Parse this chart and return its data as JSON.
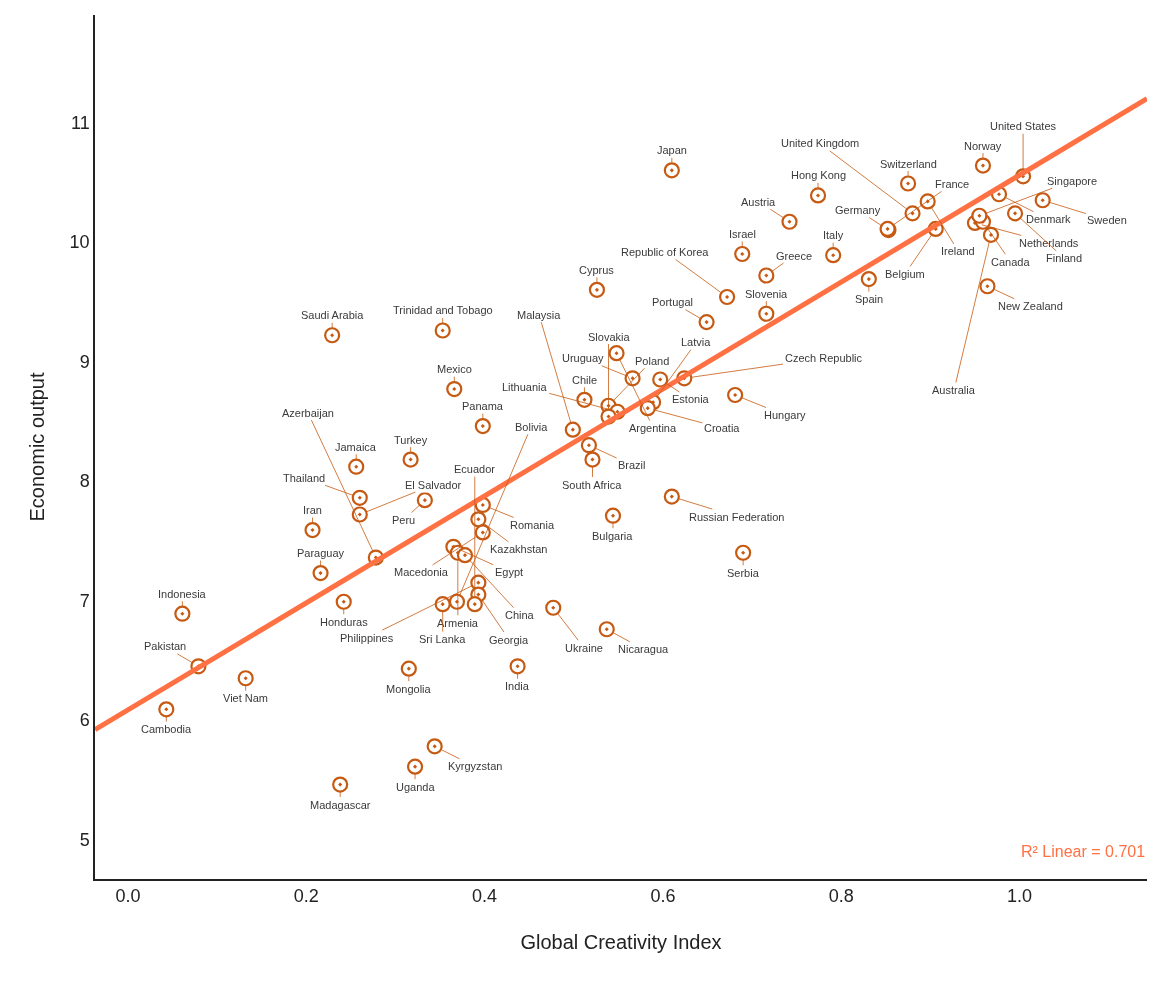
{
  "chart_data": {
    "type": "scatter",
    "xlabel": "Global Creativity Index",
    "ylabel": "Economic output",
    "xlim": [
      -0.037,
      1.143
    ],
    "ylim": [
      4.67,
      11.9
    ],
    "xticks": [
      {
        "value": 0,
        "label": "0.0"
      },
      {
        "value": 0.2,
        "label": "0.2"
      },
      {
        "value": 0.4,
        "label": "0.4"
      },
      {
        "value": 0.6,
        "label": "0.6"
      },
      {
        "value": 0.8,
        "label": "0.8"
      },
      {
        "value": 1,
        "label": "1.0"
      }
    ],
    "yticks": [
      5,
      6,
      7,
      8,
      9,
      10,
      11
    ],
    "series": [
      {
        "color": "#c65a12",
        "marker": "circle",
        "x": [
          0.061,
          0.043,
          0.079,
          0.132,
          0.242,
          0.216,
          0.207,
          0.26,
          0.26,
          0.256,
          0.278,
          0.317,
          0.333,
          0.366,
          0.353,
          0.229,
          0.398,
          0.398,
          0.393,
          0.398,
          0.365,
          0.37,
          0.378,
          0.393,
          0.393,
          0.389,
          0.369,
          0.353,
          0.315,
          0.238,
          0.322,
          0.344,
          0.437,
          0.477,
          0.537,
          0.544,
          0.61,
          0.69,
          0.512,
          0.539,
          0.549,
          0.539,
          0.499,
          0.517,
          0.521,
          0.526,
          0.548,
          0.566,
          0.597,
          0.624,
          0.589,
          0.583,
          0.61,
          0.649,
          0.689,
          0.681,
          0.672,
          0.716,
          0.716,
          0.742,
          0.774,
          0.791,
          0.831,
          0.853,
          0.852,
          0.875,
          0.88,
          0.897,
          0.906,
          0.95,
          0.959,
          0.955,
          0.968,
          0.964,
          0.959,
          0.977,
          1.004,
          0.995,
          1.026
        ],
        "values": [
          6.89,
          6.09,
          6.45,
          6.35,
          6.99,
          7.23,
          7.59,
          7.72,
          7.86,
          8.12,
          7.36,
          8.18,
          7.84,
          8.77,
          9.26,
          9.22,
          8.46,
          7.8,
          7.68,
          7.57,
          7.45,
          7.4,
          7.38,
          7.15,
          7.05,
          6.97,
          6.99,
          6.97,
          6.43,
          5.46,
          5.61,
          5.78,
          6.45,
          6.94,
          6.76,
          7.71,
          7.87,
          7.4,
          8.68,
          8.63,
          8.58,
          8.54,
          8.43,
          8.3,
          8.18,
          9.6,
          9.07,
          8.86,
          8.85,
          8.86,
          8.66,
          8.61,
          10.6,
          9.33,
          9.9,
          8.72,
          9.54,
          9.72,
          9.4,
          10.17,
          10.39,
          9.89,
          9.69,
          10.1,
          10.11,
          10.49,
          10.24,
          10.34,
          10.11,
          10.16,
          10.17,
          10.22,
          10.06,
          9.63,
          10.64,
          10.4,
          10.55,
          10.24,
          10.35
        ]
      },
      {
        "type": "line",
        "color": "#ff7043",
        "x": [
          -0.037,
          1.143
        ],
        "values": [
          5.92,
          11.2
        ]
      }
    ],
    "annotations": [
      {
        "text": "Indonesia",
        "x": 0.061,
        "y": 6.89
      },
      {
        "text": "Cambodia",
        "x": 0.043,
        "y": 6.09
      },
      {
        "text": "Pakistan",
        "x": 0.079,
        "y": 6.45
      },
      {
        "text": "Viet Nam",
        "x": 0.132,
        "y": 6.35
      },
      {
        "text": "Honduras",
        "x": 0.242,
        "y": 6.99
      },
      {
        "text": "Paraguay",
        "x": 0.216,
        "y": 7.23
      },
      {
        "text": "Iran",
        "x": 0.207,
        "y": 7.59
      },
      {
        "text": "El Salvador",
        "x": 0.26,
        "y": 7.72
      },
      {
        "text": "Thailand",
        "x": 0.26,
        "y": 7.86
      },
      {
        "text": "Jamaica",
        "x": 0.256,
        "y": 8.12
      },
      {
        "text": "Azerbaijan",
        "x": 0.278,
        "y": 7.36
      },
      {
        "text": "Turkey",
        "x": 0.317,
        "y": 8.18
      },
      {
        "text": "Peru",
        "x": 0.333,
        "y": 7.84
      },
      {
        "text": "Mexico",
        "x": 0.366,
        "y": 8.77
      },
      {
        "text": "Trinidad and Tobago",
        "x": 0.353,
        "y": 9.26
      },
      {
        "text": "Saudi Arabia",
        "x": 0.229,
        "y": 9.22
      },
      {
        "text": "Panama",
        "x": 0.398,
        "y": 8.46
      },
      {
        "text": "Romania",
        "x": 0.398,
        "y": 7.8
      },
      {
        "text": "Kazakhstan",
        "x": 0.393,
        "y": 7.68
      },
      {
        "text": "Macedonia",
        "x": 0.398,
        "y": 7.57
      },
      {
        "text": "Egypt",
        "x": 0.365,
        "y": 7.45
      },
      {
        "text": "Armenia",
        "x": 0.37,
        "y": 7.4
      },
      {
        "text": "China",
        "x": 0.378,
        "y": 7.38
      },
      {
        "text": "Philippines",
        "x": 0.393,
        "y": 7.15
      },
      {
        "text": "Georgia",
        "x": 0.393,
        "y": 7.05
      },
      {
        "text": "Ecuador",
        "x": 0.389,
        "y": 6.97
      },
      {
        "text": "Bolivia",
        "x": 0.369,
        "y": 6.99
      },
      {
        "text": "Sri Lanka",
        "x": 0.353,
        "y": 6.97
      },
      {
        "text": "Mongolia",
        "x": 0.315,
        "y": 6.43
      },
      {
        "text": "Madagascar",
        "x": 0.238,
        "y": 5.46
      },
      {
        "text": "Uganda",
        "x": 0.322,
        "y": 5.61
      },
      {
        "text": "Kyrgyzstan",
        "x": 0.344,
        "y": 5.78
      },
      {
        "text": "India",
        "x": 0.437,
        "y": 6.45
      },
      {
        "text": "Ukraine",
        "x": 0.477,
        "y": 6.94
      },
      {
        "text": "Nicaragua",
        "x": 0.537,
        "y": 6.76
      },
      {
        "text": "Bulgaria",
        "x": 0.544,
        "y": 7.71
      },
      {
        "text": "Russian Federation",
        "x": 0.61,
        "y": 7.87
      },
      {
        "text": "Serbia",
        "x": 0.69,
        "y": 7.4
      },
      {
        "text": "Chile",
        "x": 0.512,
        "y": 8.68
      },
      {
        "text": "Poland",
        "x": 0.539,
        "y": 8.63
      },
      {
        "text": "Lithuania",
        "x": 0.549,
        "y": 8.58
      },
      {
        "text": "Slovakia",
        "x": 0.539,
        "y": 8.54
      },
      {
        "text": "Malaysia",
        "x": 0.499,
        "y": 8.43
      },
      {
        "text": "Brazil",
        "x": 0.517,
        "y": 8.3
      },
      {
        "text": "South Africa",
        "x": 0.521,
        "y": 8.18
      },
      {
        "text": "Cyprus",
        "x": 0.526,
        "y": 9.6
      },
      {
        "text": "Argentina",
        "x": 0.548,
        "y": 9.07
      },
      {
        "text": "Uruguay",
        "x": 0.566,
        "y": 8.86
      },
      {
        "text": "Estonia",
        "x": 0.597,
        "y": 8.85
      },
      {
        "text": "Czech Republic",
        "x": 0.624,
        "y": 8.86
      },
      {
        "text": "Latvia",
        "x": 0.589,
        "y": 8.66
      },
      {
        "text": "Croatia",
        "x": 0.583,
        "y": 8.61
      },
      {
        "text": "Japan",
        "x": 0.61,
        "y": 10.6
      },
      {
        "text": "Portugal",
        "x": 0.649,
        "y": 9.33
      },
      {
        "text": "Israel",
        "x": 0.689,
        "y": 9.9
      },
      {
        "text": "Hungary",
        "x": 0.681,
        "y": 8.72
      },
      {
        "text": "Republic of Korea",
        "x": 0.672,
        "y": 9.54
      },
      {
        "text": "Greece",
        "x": 0.716,
        "y": 9.72
      },
      {
        "text": "Slovenia",
        "x": 0.716,
        "y": 9.4
      },
      {
        "text": "Austria",
        "x": 0.742,
        "y": 10.17
      },
      {
        "text": "Hong Kong",
        "x": 0.774,
        "y": 10.39
      },
      {
        "text": "Italy",
        "x": 0.791,
        "y": 9.89
      },
      {
        "text": "Spain",
        "x": 0.831,
        "y": 9.69
      },
      {
        "text": "Germany",
        "x": 0.853,
        "y": 10.1
      },
      {
        "text": "France",
        "x": 0.852,
        "y": 10.11
      },
      {
        "text": "Switzerland",
        "x": 0.875,
        "y": 10.49
      },
      {
        "text": "United Kingdom",
        "x": 0.88,
        "y": 10.24
      },
      {
        "text": "Ireland",
        "x": 0.897,
        "y": 10.34
      },
      {
        "text": "Belgium",
        "x": 0.906,
        "y": 10.11
      },
      {
        "text": "Netherlands",
        "x": 0.95,
        "y": 10.16
      },
      {
        "text": "Canada",
        "x": 0.959,
        "y": 10.17
      },
      {
        "text": "Singapore",
        "x": 0.955,
        "y": 10.22
      },
      {
        "text": "Australia",
        "x": 0.968,
        "y": 10.06
      },
      {
        "text": "New Zealand",
        "x": 0.964,
        "y": 9.63
      },
      {
        "text": "Norway",
        "x": 0.959,
        "y": 10.64
      },
      {
        "text": "Denmark",
        "x": 0.977,
        "y": 10.4
      },
      {
        "text": "United States",
        "x": 1.004,
        "y": 10.55
      },
      {
        "text": "Finland",
        "x": 0.995,
        "y": 10.24
      },
      {
        "text": "Sweden",
        "x": 1.026,
        "y": 10.35
      },
      "R² Linear = 0.701"
    ]
  }
}
